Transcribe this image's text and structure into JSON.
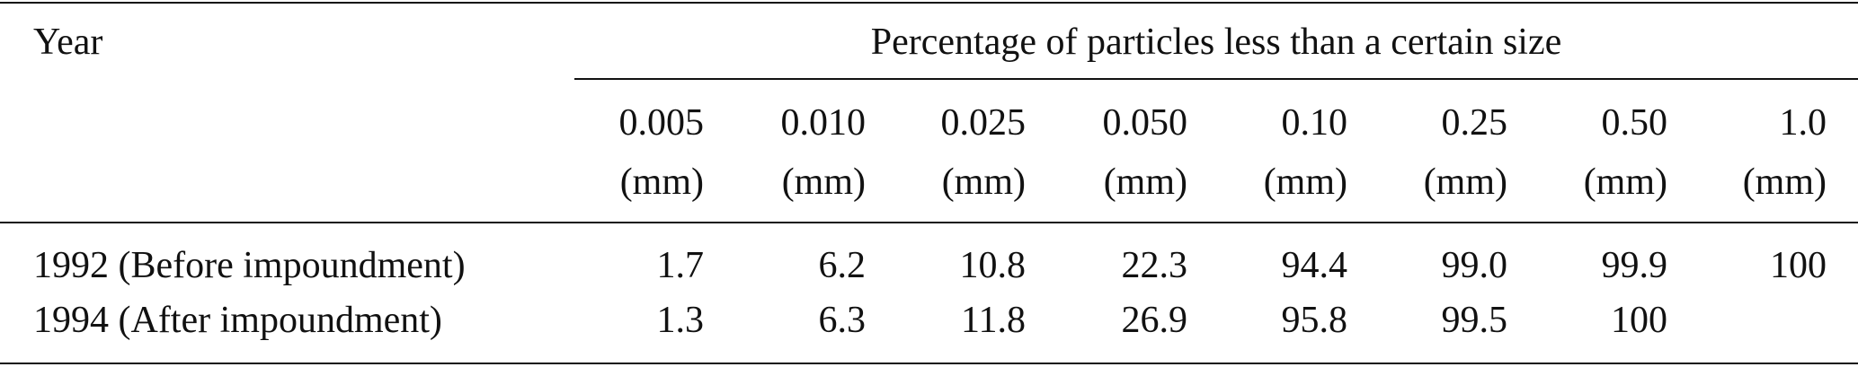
{
  "header": {
    "year": "Year",
    "span_title": "Percentage of particles less than a certain size"
  },
  "columns": [
    {
      "size": "0.005",
      "unit": "(mm)"
    },
    {
      "size": "0.010",
      "unit": "(mm)"
    },
    {
      "size": "0.025",
      "unit": "(mm)"
    },
    {
      "size": "0.050",
      "unit": "(mm)"
    },
    {
      "size": "0.10",
      "unit": "(mm)"
    },
    {
      "size": "0.25",
      "unit": "(mm)"
    },
    {
      "size": "0.50",
      "unit": "(mm)"
    },
    {
      "size": "1.0",
      "unit": "(mm)"
    }
  ],
  "rows": [
    {
      "label": "1992 (Before impoundment)",
      "cells": [
        "1.7",
        "6.2",
        "10.8",
        "22.3",
        "94.4",
        "99.0",
        "99.9",
        "100"
      ]
    },
    {
      "label": "1994 (After impoundment)",
      "cells": [
        "1.3",
        "6.3",
        "11.8",
        "26.9",
        "95.8",
        "99.5",
        "100",
        null
      ]
    }
  ]
}
